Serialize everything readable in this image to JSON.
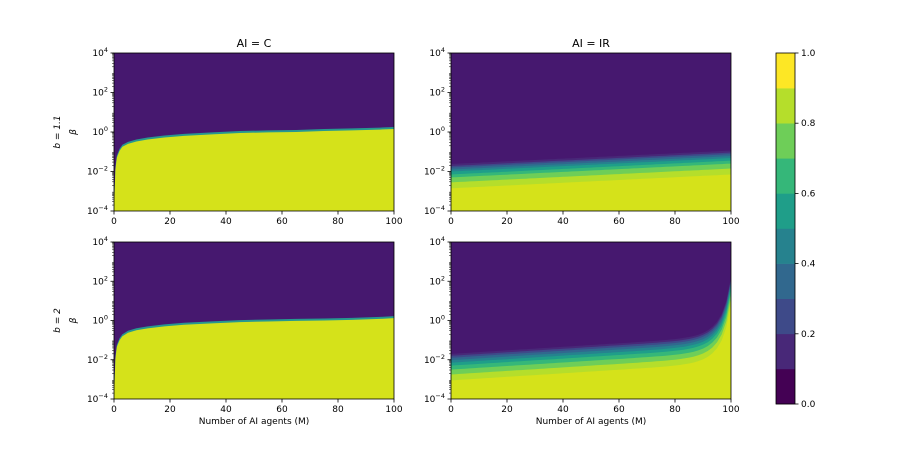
{
  "chart_data": {
    "type": "heatmap",
    "colormap": "viridis",
    "levels": [
      0.0,
      0.1,
      0.2,
      0.3,
      0.4,
      0.5,
      0.6,
      0.7,
      0.8,
      0.9,
      1.0
    ],
    "level_colors": [
      "#440154",
      "#482878",
      "#3e4a89",
      "#31688e",
      "#26828e",
      "#1f9e89",
      "#35b779",
      "#6ece58",
      "#b5de2b",
      "#fde725"
    ],
    "plot_colors": {
      "low": "#46186f",
      "high": "#d5e21a"
    },
    "x_range": [
      0,
      100
    ],
    "y_range_log10": [
      -4,
      4
    ],
    "x_ticks": [
      "0",
      "20",
      "40",
      "60",
      "80",
      "100"
    ],
    "y_ticks": [
      {
        "base": "10",
        "exp": "4"
      },
      {
        "base": "10",
        "exp": "2"
      },
      {
        "base": "10",
        "exp": "0"
      },
      {
        "base": "10",
        "exp": "−2"
      },
      {
        "base": "10",
        "exp": "−4"
      }
    ],
    "column_titles": [
      "AI = C",
      "AI = IR"
    ],
    "row_labels": [
      "b = 1.1",
      "b = 2"
    ],
    "ylabel": "β",
    "xlabel": "Number of AI agents (M)",
    "colorbar_ticks": [
      "0.0",
      "0.2",
      "0.4",
      "0.6",
      "0.8",
      "1.0"
    ],
    "panels": [
      {
        "id": "b1.1-C",
        "row": 0,
        "col": 0,
        "kind": "sharp",
        "boundary_log10": [
          [
            0,
            -4
          ],
          [
            0.5,
            -1.9
          ],
          [
            1,
            -1.3
          ],
          [
            2,
            -0.95
          ],
          [
            3,
            -0.75
          ],
          [
            5,
            -0.6
          ],
          [
            8,
            -0.48
          ],
          [
            12,
            -0.38
          ],
          [
            18,
            -0.28
          ],
          [
            25,
            -0.2
          ],
          [
            35,
            -0.12
          ],
          [
            45,
            -0.05
          ],
          [
            55,
            -0.02
          ],
          [
            65,
            0.0
          ],
          [
            75,
            0.05
          ],
          [
            85,
            0.08
          ],
          [
            95,
            0.12
          ],
          [
            100,
            0.15
          ]
        ]
      },
      {
        "id": "b1.1-IR",
        "row": 0,
        "col": 1,
        "kind": "bands",
        "band_lines": [
          {
            "level": 0.9,
            "y0": -2.85,
            "y1": -2.15
          },
          {
            "level": 0.8,
            "y0": -2.55,
            "y1": -1.85
          },
          {
            "level": 0.7,
            "y0": -2.3,
            "y1": -1.6
          },
          {
            "level": 0.6,
            "y0": -2.15,
            "y1": -1.45
          },
          {
            "level": 0.5,
            "y0": -2.0,
            "y1": -1.32
          },
          {
            "level": 0.4,
            "y0": -1.9,
            "y1": -1.22
          },
          {
            "level": 0.3,
            "y0": -1.8,
            "y1": -1.12
          },
          {
            "level": 0.2,
            "y0": -1.72,
            "y1": -1.04
          },
          {
            "level": 0.1,
            "y0": -1.62,
            "y1": -0.94
          }
        ]
      },
      {
        "id": "b2-C",
        "row": 1,
        "col": 0,
        "kind": "sharp",
        "boundary_log10": [
          [
            0,
            -4
          ],
          [
            0.5,
            -1.95
          ],
          [
            1,
            -1.35
          ],
          [
            2,
            -1.0
          ],
          [
            3,
            -0.8
          ],
          [
            5,
            -0.62
          ],
          [
            8,
            -0.5
          ],
          [
            12,
            -0.4
          ],
          [
            18,
            -0.3
          ],
          [
            25,
            -0.22
          ],
          [
            35,
            -0.15
          ],
          [
            45,
            -0.08
          ],
          [
            55,
            -0.05
          ],
          [
            65,
            -0.02
          ],
          [
            75,
            0.0
          ],
          [
            85,
            0.03
          ],
          [
            95,
            0.08
          ],
          [
            100,
            0.12
          ]
        ]
      },
      {
        "id": "b2-IR",
        "row": 1,
        "col": 1,
        "kind": "bands",
        "band_lines": [
          {
            "level": 0.9,
            "y0": -3.05
          },
          {
            "level": 0.8,
            "y0": -2.75
          },
          {
            "level": 0.7,
            "y0": -2.5
          },
          {
            "level": 0.6,
            "y0": -2.3
          },
          {
            "level": 0.5,
            "y0": -2.15
          },
          {
            "level": 0.4,
            "y0": -2.02
          },
          {
            "level": 0.3,
            "y0": -1.9
          },
          {
            "level": 0.2,
            "y0": -1.8
          },
          {
            "level": 0.1,
            "y0": -1.7
          }
        ],
        "curve_exponent": 1.6,
        "curve_gain": 3.0,
        "curve_pole": 1.0
      }
    ]
  }
}
